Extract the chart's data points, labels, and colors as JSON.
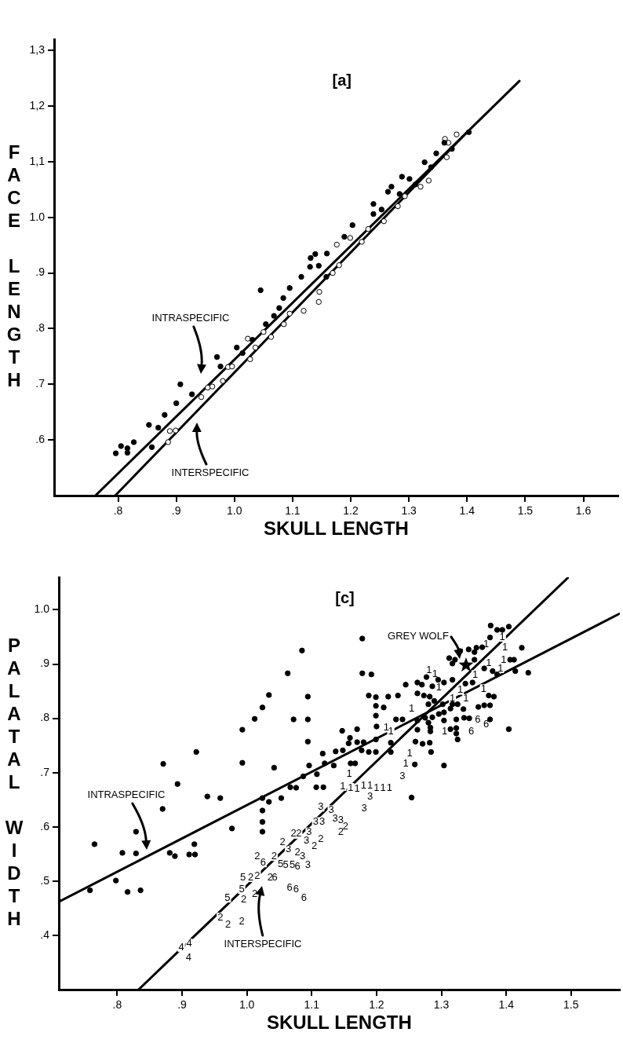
{
  "chart_data": [
    {
      "type": "scatter",
      "title": "[a]",
      "xlabel": "SKULL LENGTH",
      "ylabel": "FACE LENGTH",
      "xlim": [
        0.69,
        1.66
      ],
      "ylim": [
        0.5,
        1.32
      ],
      "xticks": [
        {
          "value": 0.8,
          "label": ".8"
        },
        {
          "value": 0.9,
          "label": ".9"
        },
        {
          "value": 1.0,
          "label": "1.0"
        },
        {
          "value": 1.1,
          "label": "1.1"
        },
        {
          "value": 1.2,
          "label": "1.2"
        },
        {
          "value": 1.3,
          "label": "1.3"
        },
        {
          "value": 1.4,
          "label": "1.4"
        },
        {
          "value": 1.5,
          "label": "1.5"
        },
        {
          "value": 1.6,
          "label": "1.6"
        }
      ],
      "yticks": [
        {
          "value": 0.6,
          "label": ".6"
        },
        {
          "value": 0.7,
          "label": ".7"
        },
        {
          "value": 0.8,
          "label": ".8"
        },
        {
          "value": 0.9,
          "label": ".9"
        },
        {
          "value": 1.0,
          "label": "1.0"
        },
        {
          "value": 1.1,
          "label": "1,1"
        },
        {
          "value": 1.2,
          "label": "1,2"
        },
        {
          "value": 1.3,
          "label": "1,3"
        }
      ],
      "annotations": [
        "INTRASPECIFIC",
        "INTERSPECIFIC"
      ],
      "series": [
        {
          "type": "scatter",
          "marker": "circle",
          "color": "#000000",
          "x": [
            0.796,
            0.805,
            0.816,
            0.827,
            0.816,
            0.853,
            0.869,
            0.858,
            0.88,
            0.9,
            0.907,
            0.927,
            0.97,
            0.976,
            1.004,
            1.014,
            1.031,
            1.054,
            1.068,
            1.077,
            1.045,
            1.084,
            1.131,
            1.139,
            1.13,
            1.145,
            1.159,
            1.189,
            1.203,
            1.239,
            1.239,
            1.264,
            1.27,
            1.288,
            1.301,
            1.327,
            1.347,
            1.361,
            1.374,
            1.403,
            1.253,
            1.284,
            1.311,
            1.338,
            1.115,
            1.095,
            1.158
          ],
          "values": [
            0.576,
            0.589,
            0.585,
            0.596,
            0.577,
            0.627,
            0.622,
            0.587,
            0.645,
            0.666,
            0.7,
            0.682,
            0.749,
            0.732,
            0.766,
            0.756,
            0.78,
            0.808,
            0.823,
            0.837,
            0.869,
            0.855,
            0.927,
            0.934,
            0.911,
            0.913,
            0.935,
            0.965,
            0.986,
            1.024,
            1.006,
            1.046,
            1.055,
            1.073,
            1.069,
            1.099,
            1.115,
            1.134,
            1.123,
            1.153,
            1.014,
            1.042,
            1.059,
            1.09,
            0.893,
            0.873,
            0.893
          ]
        },
        {
          "type": "scatter",
          "marker": "circle",
          "color": "#ffffff",
          "x": [
            0.886,
            0.889,
            0.899,
            0.943,
            0.954,
            0.962,
            0.98,
            0.989,
            0.996,
            1.023,
            1.027,
            1.036,
            1.05,
            1.063,
            1.085,
            1.095,
            1.119,
            1.146,
            1.169,
            1.176,
            1.199,
            1.219,
            1.23,
            1.257,
            1.281,
            1.293,
            1.32,
            1.334,
            1.365,
            1.362,
            1.382,
            1.368,
            1.145,
            1.18
          ],
          "values": [
            0.596,
            0.616,
            0.617,
            0.677,
            0.694,
            0.696,
            0.706,
            0.731,
            0.732,
            0.782,
            0.745,
            0.766,
            0.794,
            0.785,
            0.808,
            0.827,
            0.832,
            0.866,
            0.9,
            0.951,
            0.963,
            0.956,
            0.979,
            0.993,
            1.02,
            1.038,
            1.055,
            1.066,
            1.108,
            1.141,
            1.149,
            1.134,
            0.848,
            0.914
          ]
        },
        {
          "type": "line",
          "color": "#000000",
          "x": [
            0.761,
            1.49
          ],
          "values": [
            0.5,
            1.245
          ]
        },
        {
          "type": "line",
          "color": "#000000",
          "x": [
            0.795,
            1.4
          ],
          "values": [
            0.5,
            1.153
          ]
        }
      ]
    },
    {
      "type": "scatter",
      "title": "[c]",
      "xlabel": "SKULL LENGTH",
      "ylabel": "PALATAL WIDTH",
      "xlim": [
        0.71,
        1.575
      ],
      "ylim": [
        0.3,
        1.06
      ],
      "xticks": [
        {
          "value": 0.8,
          "label": ".8"
        },
        {
          "value": 0.9,
          "label": ".9"
        },
        {
          "value": 1.0,
          "label": "1.0"
        },
        {
          "value": 1.1,
          "label": "1.1"
        },
        {
          "value": 1.2,
          "label": "1.2"
        },
        {
          "value": 1.3,
          "label": "1.3"
        },
        {
          "value": 1.4,
          "label": "1.4"
        },
        {
          "value": 1.5,
          "label": "1.5"
        }
      ],
      "yticks": [
        {
          "value": 0.4,
          "label": ".4"
        },
        {
          "value": 0.5,
          "label": ".5"
        },
        {
          "value": 0.6,
          "label": ".6"
        },
        {
          "value": 0.7,
          "label": ".7"
        },
        {
          "value": 0.8,
          "label": ".8"
        },
        {
          "value": 0.9,
          "label": ".9"
        },
        {
          "value": 1.0,
          "label": "1.0"
        }
      ],
      "annotations": [
        "INTRASPECIFIC",
        "INTERSPECIFIC",
        {
          "text": "GREY WOLF",
          "x": 1.338,
          "y": 0.898
        },
        {
          "text": "2",
          "x": 0.959,
          "y": 0.433
        },
        {
          "text": "2",
          "x": 0.971,
          "y": 0.419
        },
        {
          "text": "2",
          "x": 0.992,
          "y": 0.426
        },
        {
          "text": "5",
          "x": 0.97,
          "y": 0.469
        },
        {
          "text": "2",
          "x": 0.995,
          "y": 0.466
        },
        {
          "text": "2",
          "x": 1.012,
          "y": 0.476
        },
        {
          "text": "5",
          "x": 0.992,
          "y": 0.485
        },
        {
          "text": "5",
          "x": 0.994,
          "y": 0.507
        },
        {
          "text": "2",
          "x": 1.006,
          "y": 0.507
        },
        {
          "text": "2",
          "x": 1.016,
          "y": 0.51
        },
        {
          "text": "2",
          "x": 1.016,
          "y": 0.546
        },
        {
          "text": "6",
          "x": 1.025,
          "y": 0.534
        },
        {
          "text": "2",
          "x": 1.036,
          "y": 0.507
        },
        {
          "text": "6",
          "x": 1.043,
          "y": 0.507
        },
        {
          "text": "2",
          "x": 1.042,
          "y": 0.546
        },
        {
          "text": "5",
          "x": 1.052,
          "y": 0.531
        },
        {
          "text": "5",
          "x": 1.06,
          "y": 0.529
        },
        {
          "text": "5",
          "x": 1.07,
          "y": 0.529
        },
        {
          "text": "6",
          "x": 1.078,
          "y": 0.527
        },
        {
          "text": "3",
          "x": 1.094,
          "y": 0.529
        },
        {
          "text": "3",
          "x": 1.064,
          "y": 0.558
        },
        {
          "text": "2",
          "x": 1.078,
          "y": 0.553
        },
        {
          "text": "3",
          "x": 1.086,
          "y": 0.546
        },
        {
          "text": "2",
          "x": 1.055,
          "y": 0.572
        },
        {
          "text": "3",
          "x": 1.092,
          "y": 0.575
        },
        {
          "text": "2",
          "x": 1.104,
          "y": 0.565
        },
        {
          "text": "2",
          "x": 1.114,
          "y": 0.578
        },
        {
          "text": "2",
          "x": 1.072,
          "y": 0.587
        },
        {
          "text": "2",
          "x": 1.08,
          "y": 0.587
        },
        {
          "text": "3",
          "x": 1.096,
          "y": 0.59
        },
        {
          "text": "3",
          "x": 1.106,
          "y": 0.609
        },
        {
          "text": "3",
          "x": 1.116,
          "y": 0.609
        },
        {
          "text": "3",
          "x": 1.136,
          "y": 0.615
        },
        {
          "text": "3",
          "x": 1.145,
          "y": 0.612
        },
        {
          "text": "2",
          "x": 1.152,
          "y": 0.6
        },
        {
          "text": "2",
          "x": 1.145,
          "y": 0.59
        },
        {
          "text": "3",
          "x": 1.114,
          "y": 0.637
        },
        {
          "text": "3",
          "x": 1.13,
          "y": 0.631
        },
        {
          "text": "3",
          "x": 1.181,
          "y": 0.634
        },
        {
          "text": "3",
          "x": 1.19,
          "y": 0.656
        },
        {
          "text": "6",
          "x": 1.066,
          "y": 0.488
        },
        {
          "text": "6",
          "x": 1.076,
          "y": 0.485
        },
        {
          "text": "6",
          "x": 1.088,
          "y": 0.469
        },
        {
          "text": "4",
          "x": 0.899,
          "y": 0.378
        },
        {
          "text": "4",
          "x": 0.911,
          "y": 0.385
        },
        {
          "text": "4",
          "x": 0.91,
          "y": 0.359
        },
        {
          "text": "1",
          "x": 1.148,
          "y": 0.675
        },
        {
          "text": "1",
          "x": 1.16,
          "y": 0.672
        },
        {
          "text": "1",
          "x": 1.17,
          "y": 0.67
        },
        {
          "text": "1",
          "x": 1.18,
          "y": 0.676
        },
        {
          "text": "1",
          "x": 1.19,
          "y": 0.676
        },
        {
          "text": "1",
          "x": 1.2,
          "y": 0.672
        },
        {
          "text": "1",
          "x": 1.21,
          "y": 0.672
        },
        {
          "text": "1",
          "x": 1.22,
          "y": 0.672
        },
        {
          "text": "1",
          "x": 1.158,
          "y": 0.697
        },
        {
          "text": "3",
          "x": 1.24,
          "y": 0.693
        },
        {
          "text": "1",
          "x": 1.251,
          "y": 0.735
        },
        {
          "text": "1",
          "x": 1.245,
          "y": 0.717
        },
        {
          "text": "1",
          "x": 1.254,
          "y": 0.818
        },
        {
          "text": "1",
          "x": 1.222,
          "y": 0.776
        },
        {
          "text": "1",
          "x": 1.215,
          "y": 0.783
        },
        {
          "text": "1",
          "x": 1.305,
          "y": 0.776
        },
        {
          "text": "6",
          "x": 1.346,
          "y": 0.776
        },
        {
          "text": "6",
          "x": 1.356,
          "y": 0.798
        },
        {
          "text": "6",
          "x": 1.369,
          "y": 0.789
        },
        {
          "text": "1",
          "x": 1.317,
          "y": 0.836
        },
        {
          "text": "1",
          "x": 1.329,
          "y": 0.852
        },
        {
          "text": "1",
          "x": 1.338,
          "y": 0.836
        },
        {
          "text": "1",
          "x": 1.365,
          "y": 0.854
        },
        {
          "text": "1",
          "x": 1.352,
          "y": 0.88
        },
        {
          "text": "1",
          "x": 1.296,
          "y": 0.856
        },
        {
          "text": "1",
          "x": 1.281,
          "y": 0.889
        },
        {
          "text": "1",
          "x": 1.29,
          "y": 0.881
        },
        {
          "text": "1",
          "x": 1.373,
          "y": 0.902
        },
        {
          "text": "1",
          "x": 1.391,
          "y": 0.892
        },
        {
          "text": "1",
          "x": 1.396,
          "y": 0.908
        },
        {
          "text": "1",
          "x": 1.398,
          "y": 0.93
        },
        {
          "text": "1",
          "x": 1.394,
          "y": 0.95
        },
        {
          "text": "1",
          "x": 1.369,
          "y": 0.936
        }
      ],
      "series": [
        {
          "type": "scatter",
          "marker": "circle",
          "color": "#000000",
          "x": [
            0.758,
            0.765,
            0.798,
            0.808,
            0.816,
            0.829,
            0.829,
            0.836,
            0.87,
            0.871,
            0.881,
            0.889,
            0.893,
            0.911,
            0.92,
            0.919,
            0.922,
            0.939,
            0.959,
            0.977,
            0.993,
            0.993,
            1.012,
            1.024,
            1.034,
            1.042,
            1.024,
            1.024,
            1.024,
            1.024,
            1.034,
            1.178,
            1.085,
            1.063,
            1.178,
            1.192,
            1.072,
            1.094,
            1.094,
            1.094,
            1.188,
            1.199,
            1.218,
            1.199,
            1.211,
            1.199,
            1.2,
            1.147,
            1.17,
            1.159,
            1.157,
            1.17,
            1.18,
            1.117,
            1.137,
            1.148,
            1.177,
            1.188,
            1.199,
            1.12,
            1.134,
            1.16,
            1.167,
            1.096,
            1.108,
            1.087,
            1.067,
            1.076,
            1.107,
            1.118,
            1.053,
            1.376,
            1.386,
            1.394,
            1.404,
            1.375,
            1.424,
            1.354,
            1.342,
            1.363,
            1.329,
            1.312,
            1.321,
            1.317,
            1.351,
            1.351,
            1.366,
            1.379,
            1.386,
            1.406,
            1.412,
            1.414,
            1.434,
            1.348,
            1.337,
            1.317,
            1.304,
            1.295,
            1.286,
            1.277,
            1.263,
            1.27,
            1.245,
            1.263,
            1.273,
            1.282,
            1.233,
            1.373,
            1.381,
            1.28,
            1.289,
            1.302,
            1.317,
            1.325,
            1.314,
            1.334,
            1.357,
            1.366,
            1.375,
            1.296,
            1.304,
            1.304,
            1.286,
            1.275,
            1.263,
            1.24,
            1.23,
            1.28,
            1.323,
            1.335,
            1.343,
            1.375,
            1.263,
            1.283,
            1.283,
            1.314,
            1.323,
            1.323,
            1.325,
            1.26,
            1.271,
            1.282,
            1.284,
            1.222,
            1.222,
            1.259,
            1.304,
            1.404,
            1.254,
            1.199
          ],
          "values": [
            0.483,
            0.568,
            0.501,
            0.552,
            0.48,
            0.591,
            0.551,
            0.483,
            0.633,
            0.716,
            0.552,
            0.546,
            0.679,
            0.549,
            0.549,
            0.568,
            0.738,
            0.656,
            0.653,
            0.597,
            0.779,
            0.718,
            0.799,
            0.82,
            0.843,
            0.709,
            0.653,
            0.63,
            0.609,
            0.591,
            0.646,
            0.947,
            0.925,
            0.883,
            0.883,
            0.881,
            0.798,
            0.798,
            0.84,
            0.757,
            0.842,
            0.839,
            0.84,
            0.823,
            0.82,
            0.805,
            0.785,
            0.777,
            0.78,
            0.764,
            0.754,
            0.756,
            0.756,
            0.735,
            0.739,
            0.741,
            0.741,
            0.738,
            0.738,
            0.717,
            0.713,
            0.717,
            0.717,
            0.713,
            0.697,
            0.693,
            0.673,
            0.672,
            0.673,
            0.673,
            0.653,
            0.971,
            0.963,
            0.963,
            0.969,
            0.949,
            0.93,
            0.93,
            0.927,
            0.931,
            0.924,
            0.911,
            0.908,
            0.901,
            0.922,
            0.908,
            0.892,
            0.887,
            0.881,
            0.908,
            0.908,
            0.887,
            0.884,
            0.866,
            0.864,
            0.871,
            0.866,
            0.871,
            0.859,
            0.876,
            0.866,
            0.862,
            0.862,
            0.846,
            0.842,
            0.84,
            0.842,
            0.842,
            0.84,
            0.826,
            0.832,
            0.826,
            0.826,
            0.826,
            0.818,
            0.817,
            0.821,
            0.824,
            0.824,
            0.808,
            0.811,
            0.796,
            0.802,
            0.801,
            0.796,
            0.798,
            0.798,
            0.792,
            0.798,
            0.801,
            0.8,
            0.798,
            0.779,
            0.783,
            0.776,
            0.78,
            0.782,
            0.772,
            0.761,
            0.757,
            0.753,
            0.755,
            0.738,
            0.755,
            0.738,
            0.715,
            0.713,
            0.78,
            0.654,
            0.761
          ]
        },
        {
          "type": "scatter",
          "marker": "star",
          "color": "#000000",
          "x": [
            1.338
          ],
          "values": [
            0.898
          ]
        },
        {
          "type": "line",
          "color": "#000000",
          "x": [
            0.71,
            1.575
          ],
          "values": [
            0.462,
            0.993
          ]
        },
        {
          "type": "line",
          "color": "#000000",
          "x": [
            0.833,
            1.495
          ],
          "values": [
            0.3,
            1.059
          ]
        }
      ]
    }
  ]
}
